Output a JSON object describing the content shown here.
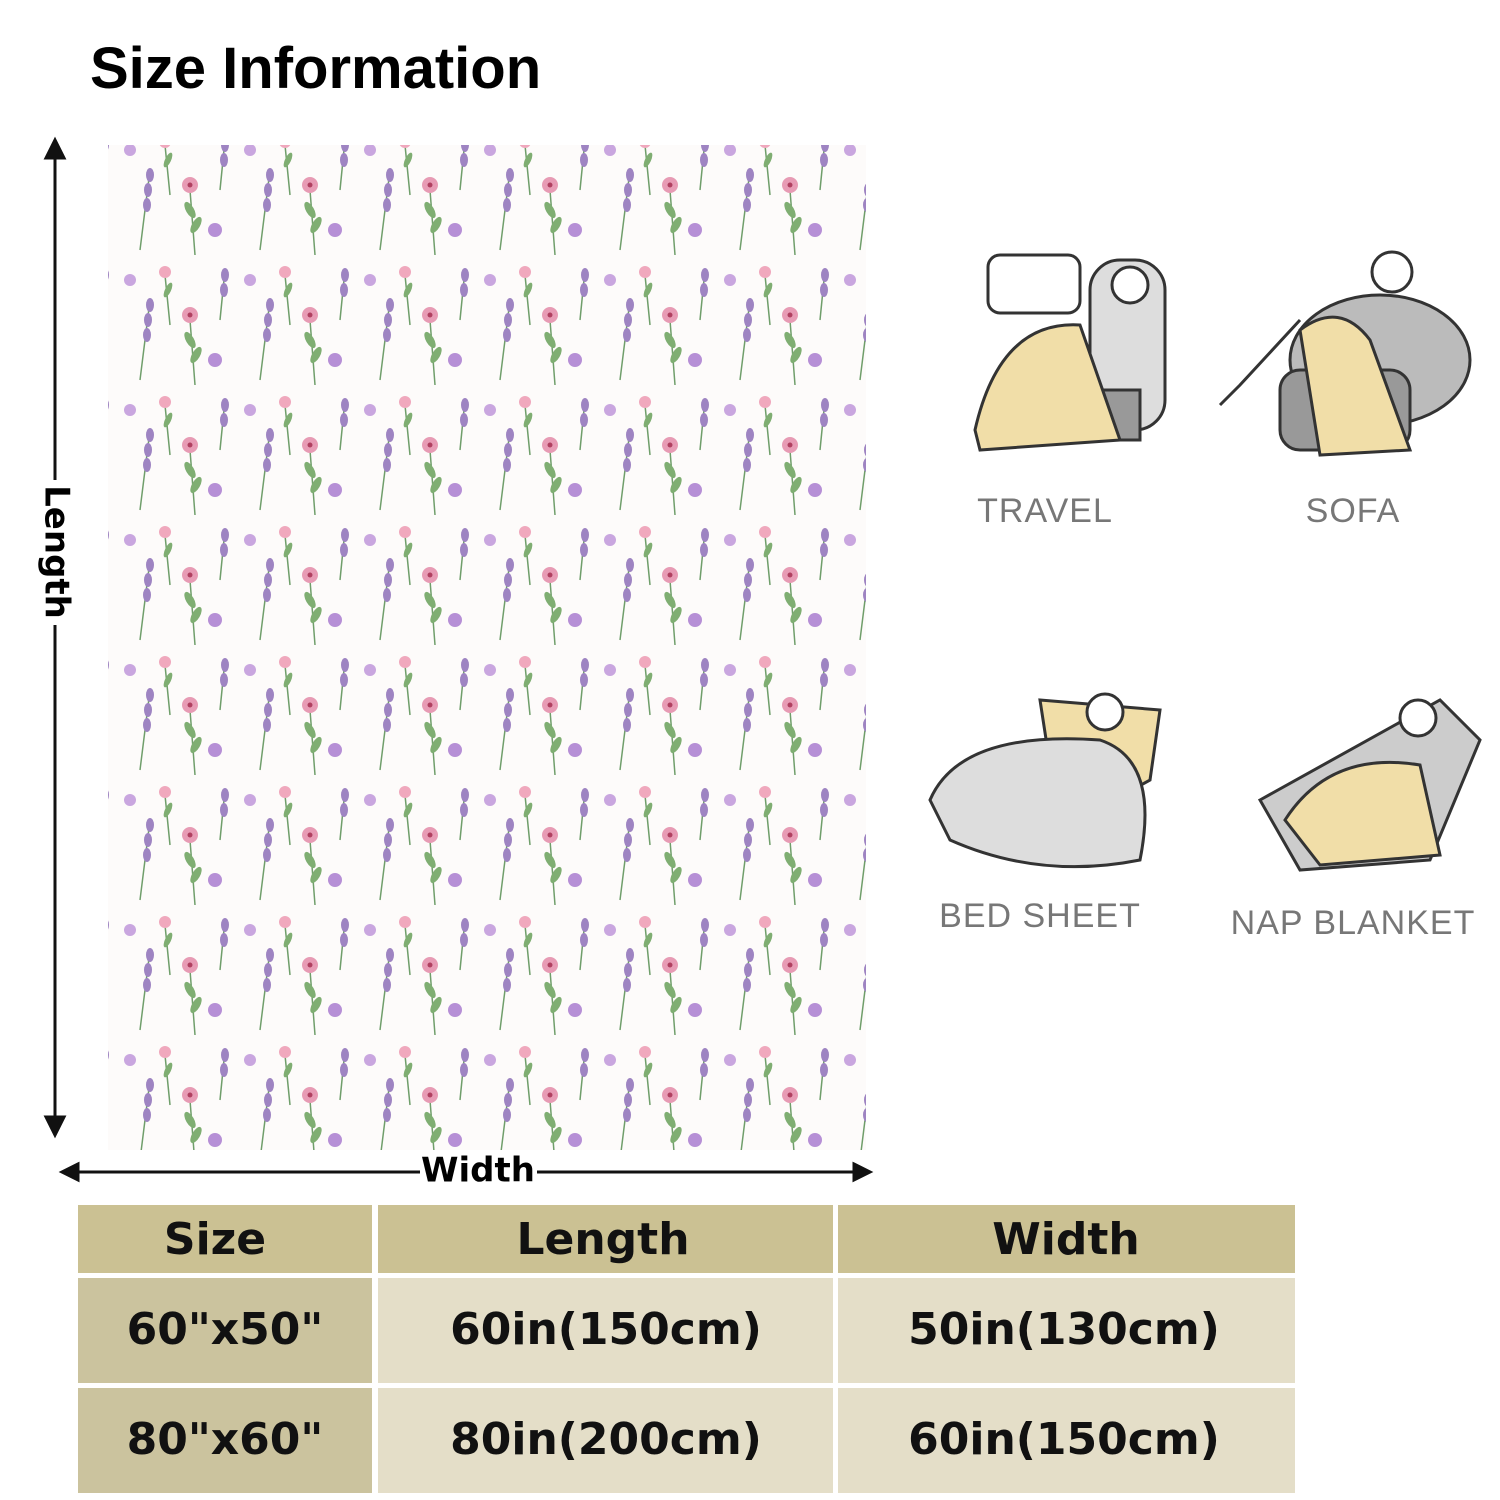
{
  "header": {
    "title": "Size Information"
  },
  "dimensions": {
    "length_label": "Length",
    "width_label": "Width"
  },
  "uses": [
    {
      "label": "TRAVEL"
    },
    {
      "label": "SOFA"
    },
    {
      "label": "BED SHEET"
    },
    {
      "label": "NAP BLANKET"
    }
  ],
  "table": {
    "headers": [
      "Size",
      "Length",
      "Width"
    ],
    "rows": [
      [
        "60\"x50\"",
        "60in(150cm)",
        "50in(130cm)"
      ],
      [
        "80\"x60\"",
        "80in(200cm)",
        "60in(150cm)"
      ]
    ]
  }
}
